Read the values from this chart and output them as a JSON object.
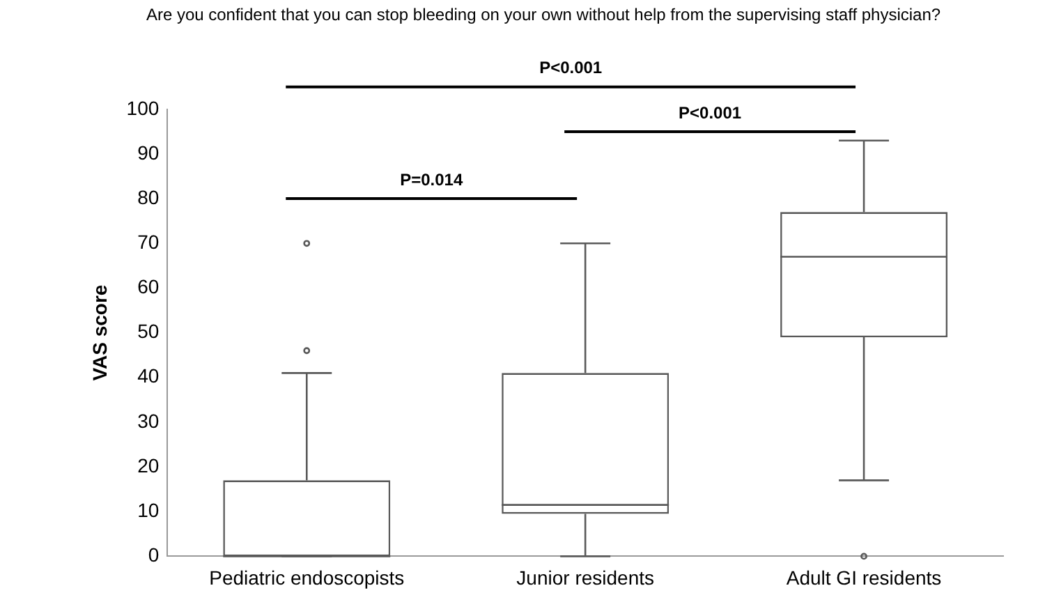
{
  "chart_data": {
    "type": "box",
    "title": "Are you confident that you can stop bleeding on your own without help from the supervising staff physician?",
    "ylabel": "VAS score",
    "categories": [
      "Pediatric endoscopists",
      "Junior residents",
      "Adult GI residents"
    ],
    "boxes": [
      {
        "low": 0,
        "q1": 0,
        "median": 0,
        "q3": 17,
        "high": 41,
        "outliers": [
          46,
          70
        ]
      },
      {
        "low": 0,
        "q1": 9.5,
        "median": 11.5,
        "q3": 41,
        "high": 70
      },
      {
        "low": 17,
        "q1": 49,
        "median": 67,
        "q3": 77,
        "high": 93,
        "outliers": [
          0
        ]
      }
    ],
    "color": "#595959",
    "ylim": [
      0,
      100
    ],
    "yticks": [
      0,
      10,
      20,
      30,
      40,
      50,
      60,
      70,
      80,
      90,
      100
    ],
    "grid": false,
    "annotations": [
      "P<0.001",
      "P<0.001",
      "P=0.014"
    ]
  }
}
